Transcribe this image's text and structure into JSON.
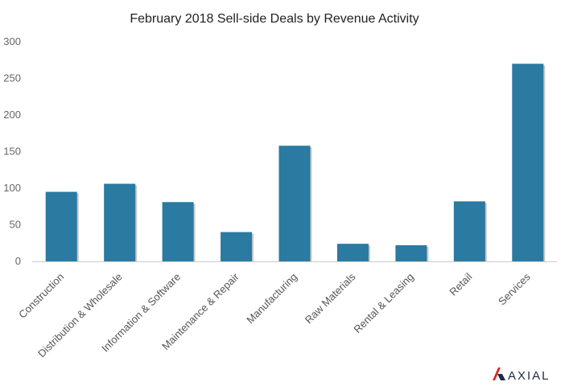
{
  "chart_data": {
    "type": "bar",
    "title": "February 2018 Sell-side Deals by Revenue Activity",
    "xlabel": "",
    "ylabel": "",
    "categories": [
      "Construction",
      "Distribution & Wholesale",
      "Information & Software",
      "Maintenance & Repair",
      "Manufacturing",
      "Raw Materials",
      "Rental & Leasing",
      "Retail",
      "Services"
    ],
    "values": [
      95,
      106,
      81,
      40,
      158,
      24,
      22,
      82,
      270
    ],
    "ylim": [
      0,
      300
    ],
    "yticks": [
      "0",
      "50",
      "100",
      "150",
      "200",
      "250",
      "300"
    ],
    "grid": false,
    "legend": "none",
    "bar_color": "#2a7aa1"
  },
  "branding": {
    "logo_name": "axial-logo-icon",
    "logo_text": "AXIAL",
    "logo_colors": {
      "red": "#d9262a",
      "navy": "#1f2a44"
    }
  }
}
